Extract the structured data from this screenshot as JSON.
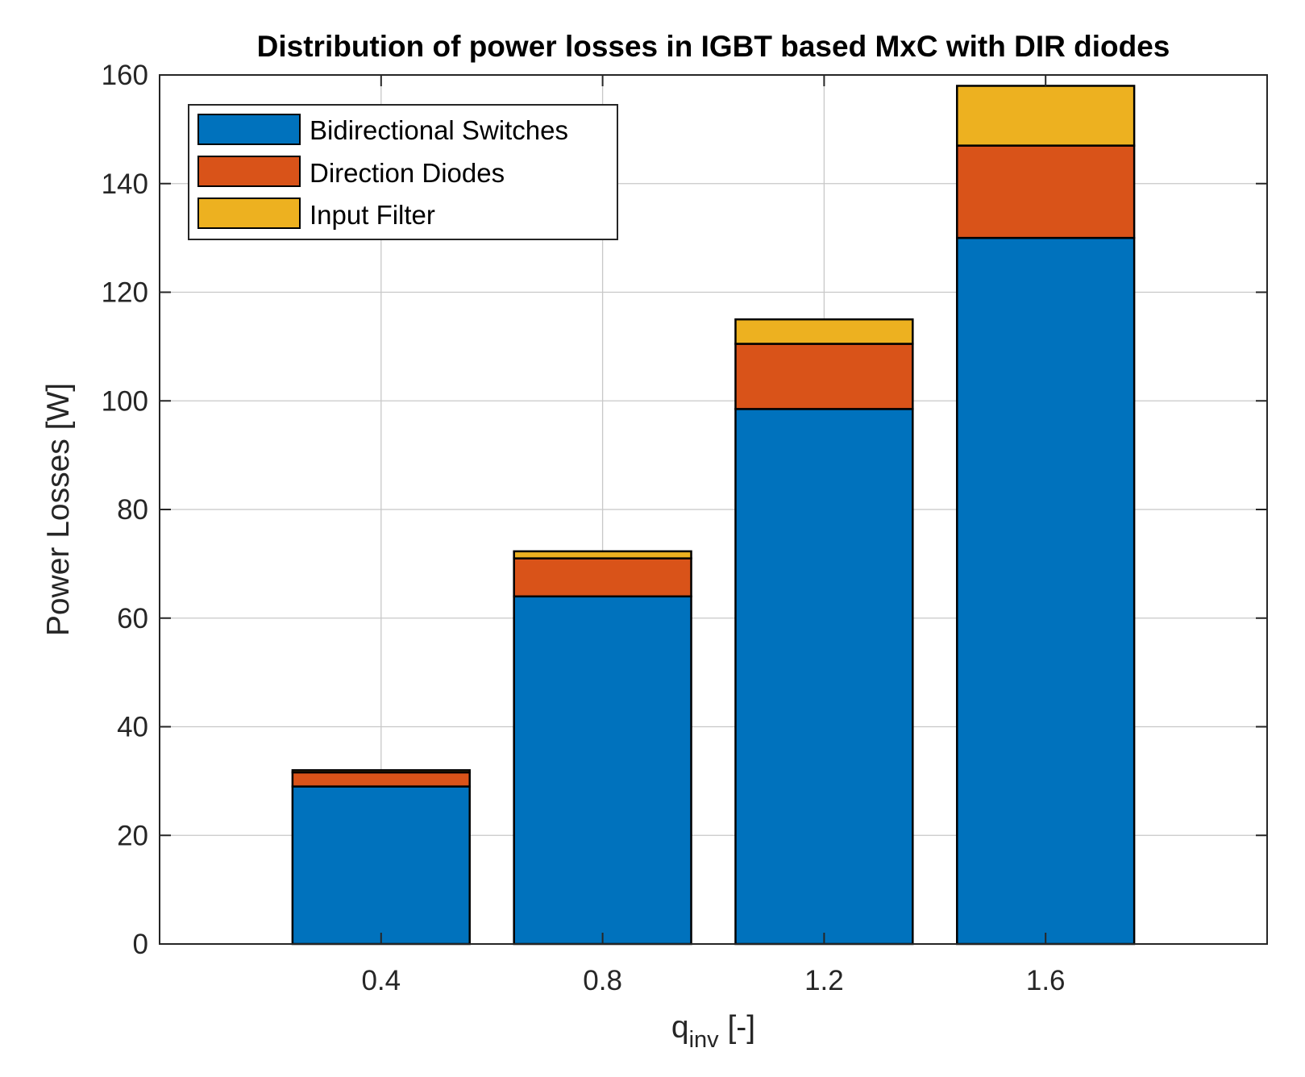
{
  "chart_data": {
    "type": "bar",
    "stacked": true,
    "title": "Distribution of power losses in IGBT based MxC with DIR diodes",
    "xlabel": {
      "main": "q",
      "sub": "inv",
      "suffix": " [-]"
    },
    "ylabel": "Power Losses [W]",
    "categories": [
      "0.4",
      "0.8",
      "1.2",
      "1.6"
    ],
    "series": [
      {
        "name": "Bidirectional Switches",
        "color": "#0072BD",
        "values": [
          29,
          64,
          98.5,
          130
        ]
      },
      {
        "name": "Direction Diodes",
        "color": "#D95319",
        "values": [
          2.6,
          7,
          12,
          17
        ]
      },
      {
        "name": "Input Filter",
        "color": "#EDB120",
        "values": [
          0.4,
          1.3,
          4.5,
          11
        ]
      }
    ],
    "x_range": [
      0,
      2
    ],
    "ylim": [
      0,
      160
    ],
    "yticks": [
      "0",
      "20",
      "40",
      "60",
      "80",
      "100",
      "120",
      "140",
      "160"
    ],
    "grid": true,
    "legend_position": "top-left"
  }
}
